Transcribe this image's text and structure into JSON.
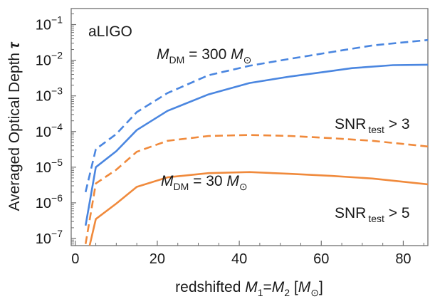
{
  "chart_data": {
    "type": "line",
    "panel_label": "aLIGO",
    "xlabel": {
      "prefix": "redshifted ",
      "m1": "M",
      "m1_sub": "1",
      "eq": "=",
      "m2": "M",
      "m2_sub": "2",
      "unit_open": " [",
      "unit_m": "M",
      "unit_sun": "⊙",
      "unit_close": "]"
    },
    "ylabel": {
      "text": "Averaged Optical Depth ",
      "symbol": "τ"
    },
    "xlim": [
      -1,
      86
    ],
    "ylim_log10": [
      -7.2,
      -0.55
    ],
    "yscale": "log",
    "grid": false,
    "x_ticks": [
      0,
      20,
      40,
      60,
      80
    ],
    "x_tick_labels": [
      "0",
      "20",
      "40",
      "60",
      "80"
    ],
    "y_ticks": [
      {
        "exp": -1,
        "base": "10",
        "sup": "−1"
      },
      {
        "exp": -2,
        "base": "10",
        "sup": "−2"
      },
      {
        "exp": -3,
        "base": "10",
        "sup": "−3"
      },
      {
        "exp": -4,
        "base": "10",
        "sup": "−4"
      },
      {
        "exp": -5,
        "base": "10",
        "sup": "−5"
      },
      {
        "exp": -6,
        "base": "10",
        "sup": "−6"
      },
      {
        "exp": -7,
        "base": "10",
        "sup": "−7"
      }
    ],
    "series": [
      {
        "color": "#4a86e0",
        "dash": true,
        "x": [
          2.5,
          5,
          10,
          15,
          22.5,
          32.5,
          42.5,
          52.5,
          62.5,
          72.5,
          86
        ],
        "y": [
          2e-06,
          3.2e-05,
          8.5e-05,
          0.00035,
          0.0012,
          0.0038,
          0.007,
          0.011,
          0.017,
          0.026,
          0.037
        ]
      },
      {
        "color": "#4a86e0",
        "dash": false,
        "x": [
          2.5,
          5,
          10,
          15,
          22.5,
          32.5,
          42.5,
          52.5,
          62.5,
          67.5,
          77.5,
          86
        ],
        "y": [
          2.3e-07,
          1e-05,
          2.8e-05,
          0.00011,
          0.00038,
          0.0011,
          0.0023,
          0.0035,
          0.005,
          0.006,
          0.0073,
          0.0075
        ]
      },
      {
        "color": "#f08a3c",
        "dash": true,
        "x": [
          2.5,
          5,
          10,
          15,
          22.5,
          32.5,
          42.5,
          52.5,
          62.5,
          72.5,
          86
        ],
        "y": [
          7e-08,
          3.5e-06,
          8.5e-06,
          2.7e-05,
          5.5e-05,
          7.5e-05,
          8e-05,
          7.5e-05,
          6.5e-05,
          5.5e-05,
          3.8e-05
        ]
      },
      {
        "color": "#f08a3c",
        "dash": false,
        "x": [
          3.5,
          5,
          10,
          15,
          22.5,
          32.5,
          42.5,
          52.5,
          62.5,
          72.5,
          86
        ],
        "y": [
          6.3e-08,
          3.5e-07,
          9.5e-07,
          2.8e-06,
          5.2e-06,
          6.8e-06,
          7.3e-06,
          6.5e-06,
          5.7e-06,
          4.8e-06,
          3.3e-06
        ]
      }
    ],
    "annotations": {
      "mdm300": {
        "m": "M",
        "sub": "DM",
        "text": " = 300 ",
        "msun": "M",
        "sun": "⊙"
      },
      "mdm30": {
        "m": "M",
        "sub": "DM",
        "text": " = 30 ",
        "msun": "M",
        "sun": "⊙"
      },
      "snr3": {
        "prefix": "SNR",
        "sub": "test",
        "text": " > 3"
      },
      "snr5": {
        "prefix": "SNR",
        "sub": "test",
        "text": " > 5"
      }
    }
  }
}
